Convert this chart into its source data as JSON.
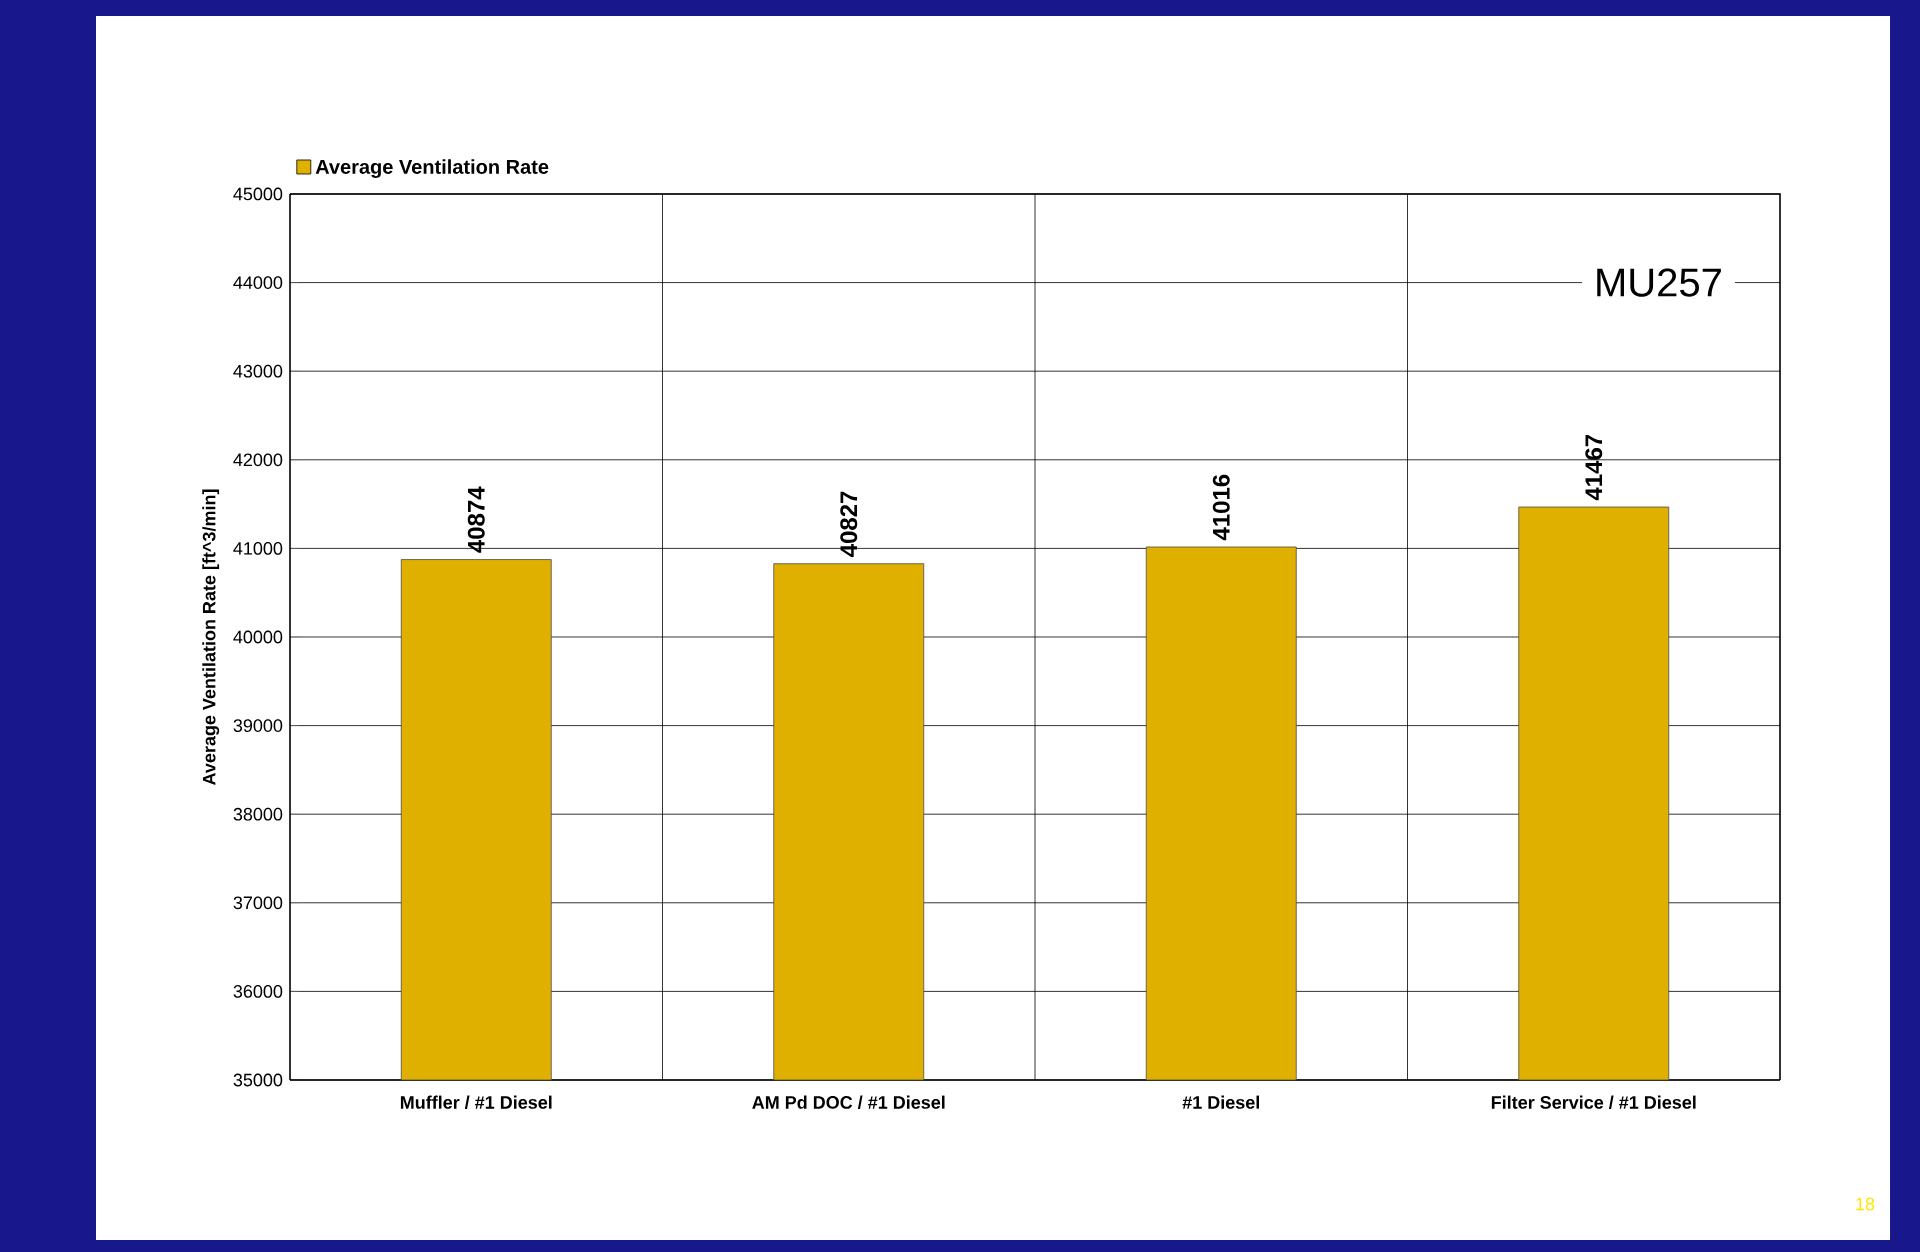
{
  "chart_data": {
    "type": "bar",
    "ylabel": "Average Ventilation Rate [ft^3/min]",
    "categories": [
      "Muffler / #1 Diesel",
      "AM Pd DOC / #1 Diesel",
      "#1 Diesel",
      "Filter Service / #1 Diesel"
    ],
    "series": [
      {
        "name": "Average Ventilation Rate",
        "color": "#e0b000",
        "values": [
          40874,
          40827,
          41016,
          41467
        ]
      }
    ],
    "ylim": [
      35000,
      45000
    ],
    "yticks": [
      35000,
      36000,
      37000,
      38000,
      39000,
      40000,
      41000,
      42000,
      43000,
      44000,
      45000
    ],
    "grid": true,
    "legend": "top left",
    "data_labels": true,
    "annotations": [
      "MU257",
      "18"
    ]
  }
}
